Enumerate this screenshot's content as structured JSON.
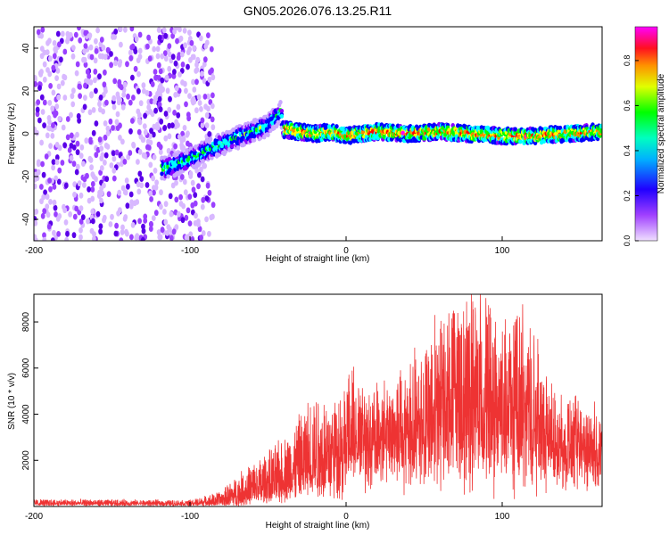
{
  "figure_title": "GN05.2026.076.13.25.R11",
  "chart_data": [
    {
      "id": "spectrogram",
      "type": "heatmap",
      "title": "GN05.2026.076.13.25.R11",
      "xlabel": "Height of straight line (km)",
      "ylabel": "Frequency (Hz)",
      "xlim": [
        -200,
        164
      ],
      "ylim": [
        -50,
        50
      ],
      "xticks": [
        -200,
        -100,
        0,
        100
      ],
      "yticks": [
        -40,
        -20,
        0,
        20,
        40
      ],
      "grid": false,
      "ridge": {
        "description_points_x": [
          -115,
          -100,
          -90,
          -80,
          -70,
          -60,
          -50,
          -45,
          -42,
          -40,
          -30,
          -20,
          -10,
          0,
          20,
          40,
          60,
          80,
          100,
          120,
          140,
          164
        ],
        "frequency_hz": [
          -16,
          -12,
          -8,
          -5,
          -2,
          1,
          4,
          8,
          10,
          2,
          1,
          0,
          1,
          -1,
          1,
          0,
          1,
          0,
          -1,
          -1,
          0,
          1
        ]
      },
      "colorbar": {
        "label": "Normalized spectral amplitude",
        "range": [
          0.0,
          0.95
        ],
        "ticks": [
          0.0,
          0.2,
          0.4,
          0.6,
          0.8
        ],
        "tick_labels": [
          "0.0",
          "0.2",
          "0.4",
          "0.6",
          "0.8"
        ],
        "colormap": [
          "#e8ccff",
          "#8800ff",
          "#0000ff",
          "#00ffff",
          "#00ff00",
          "#ffff00",
          "#ff8800",
          "#ff0000",
          "#ff00ff"
        ]
      }
    },
    {
      "id": "snr",
      "type": "line",
      "xlabel": "Height of straight line (km)",
      "ylabel": "SNR (10 * v/v)",
      "xlim": [
        -200,
        164
      ],
      "ylim": [
        0,
        9200
      ],
      "xticks": [
        -200,
        -100,
        0,
        100
      ],
      "yticks": [
        2000,
        4000,
        6000,
        8000
      ],
      "line_color": "#ee3333",
      "envelope": {
        "x": [
          -200,
          -100,
          -90,
          -80,
          -70,
          -60,
          -50,
          -40,
          -30,
          -20,
          -10,
          0,
          10,
          20,
          30,
          40,
          50,
          60,
          70,
          80,
          90,
          100,
          110,
          120,
          130,
          140,
          150,
          164
        ],
        "baseline": [
          100,
          100,
          100,
          100,
          150,
          300,
          500,
          800,
          1000,
          1500,
          1800,
          2200,
          2300,
          2400,
          2600,
          2800,
          2600,
          2200,
          2000,
          2000,
          2100,
          2100,
          2100,
          2200,
          2900,
          3000,
          3000,
          3000
        ],
        "peak": [
          350,
          300,
          500,
          700,
          1400,
          2000,
          2500,
          3200,
          4200,
          5500,
          5200,
          6000,
          5400,
          5400,
          6100,
          6500,
          7200,
          8000,
          9200,
          8400,
          8700,
          7500,
          8600,
          7800,
          5600,
          5000,
          4700,
          4500
        ]
      }
    }
  ]
}
